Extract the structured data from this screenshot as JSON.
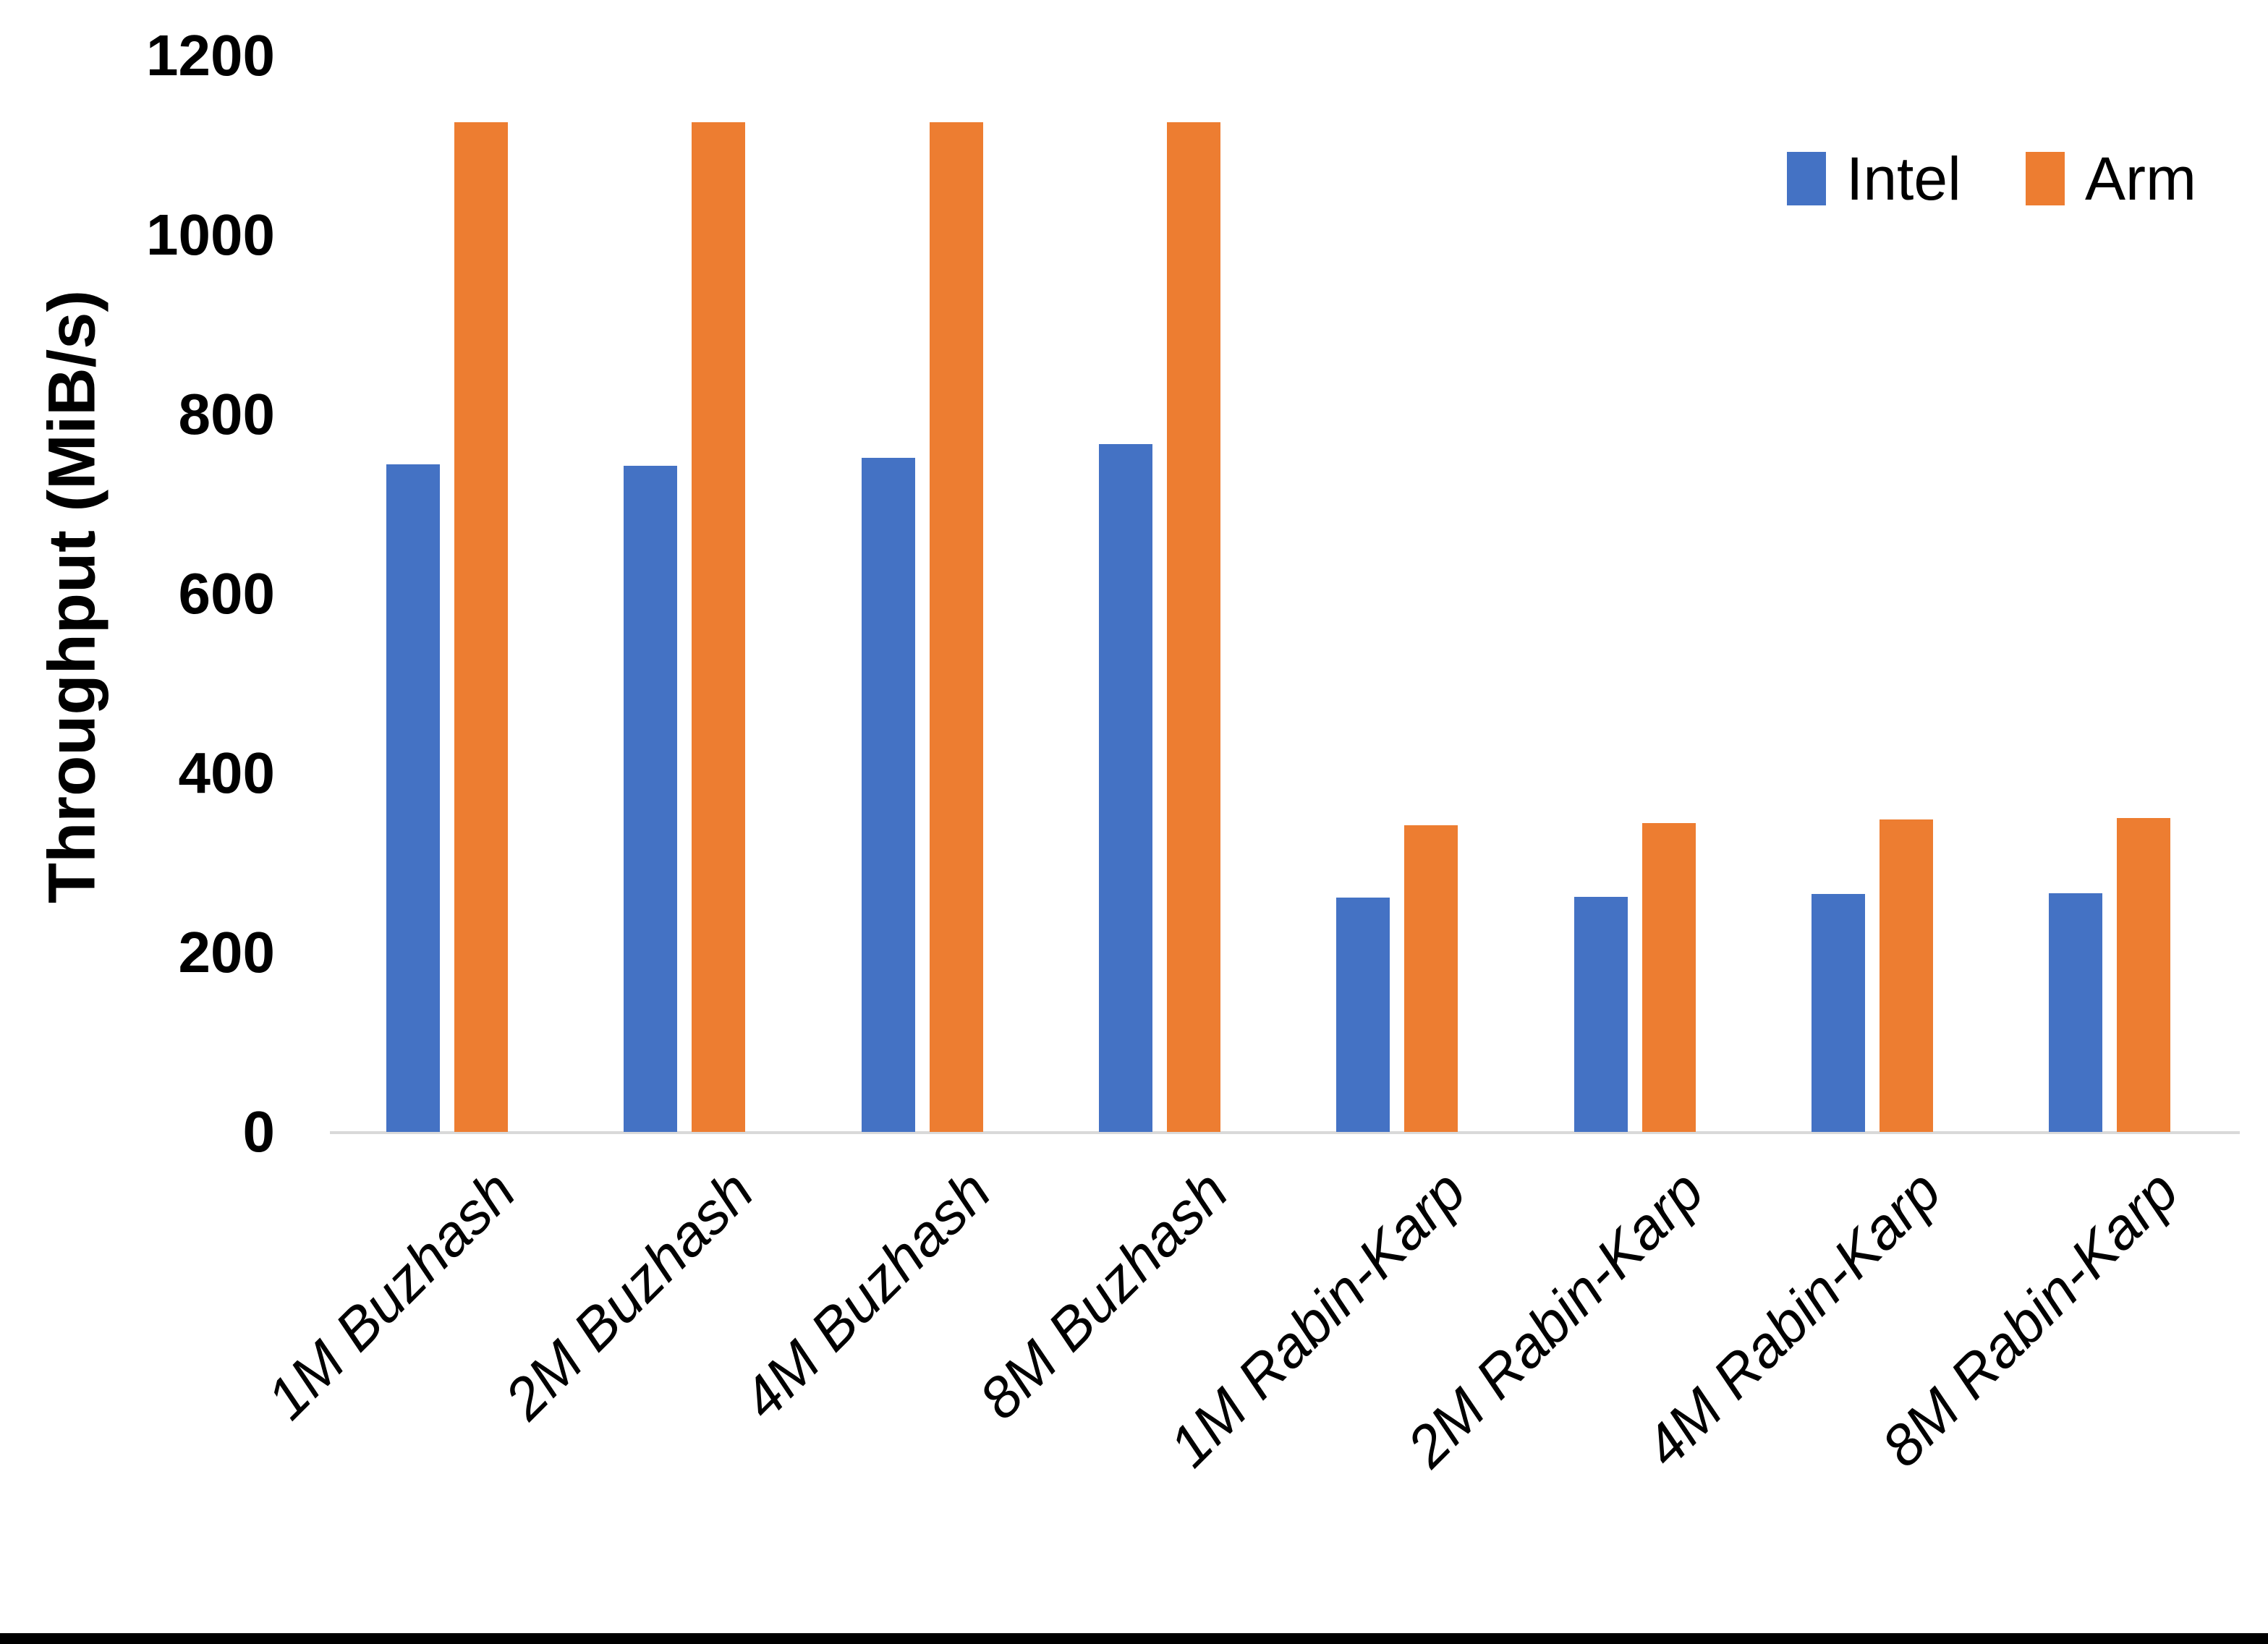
{
  "chart_data": {
    "type": "bar",
    "title": "",
    "xlabel": "",
    "ylabel": "Throughput (MiB/s)",
    "ylim": [
      0,
      1200
    ],
    "yticks": [
      0,
      200,
      400,
      600,
      800,
      1000,
      1200
    ],
    "grid": false,
    "legend_position": "top-right",
    "categories": [
      "1M Buzhash",
      "2M Buzhash",
      "4M Buzhash",
      "8M Buzhash",
      "1M Rabin-Karp",
      "2M Rabin-Karp",
      "4M Rabin-Karp",
      "8M Rabin-Karp"
    ],
    "series": [
      {
        "name": "Intel",
        "color": "#4472C4",
        "values": [
          744,
          743,
          752,
          767,
          261,
          262,
          265,
          266
        ]
      },
      {
        "name": "Arm",
        "color": "#ED7D31",
        "values": [
          1126,
          1126,
          1126,
          1126,
          342,
          344,
          348,
          350
        ]
      }
    ]
  },
  "colors": {
    "axis_line": "#D9D9D9",
    "text": "#000000",
    "background": "#FFFFFF",
    "bottom_border": "#000000"
  }
}
